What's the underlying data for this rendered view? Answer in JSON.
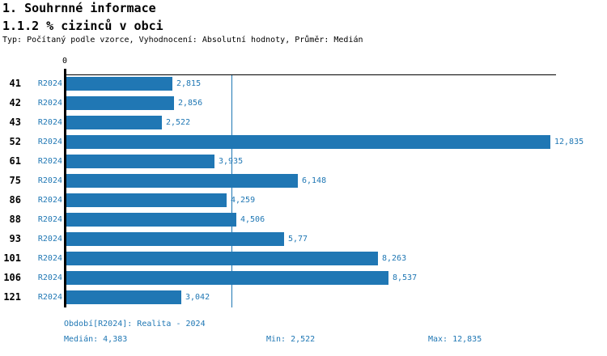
{
  "header": {
    "section_title": "1. Souhrnné informace",
    "indicator_title": "1.1.2 % cizinců v obci",
    "meta": "Typ: Počítaný podle vzorce, Vyhodnocení: Absolutní hodnoty, Průměr: Medián"
  },
  "chart_data": {
    "type": "bar",
    "orientation": "horizontal",
    "title": "1.1.2 % cizinců v obci",
    "categories": [
      "41",
      "42",
      "43",
      "52",
      "61",
      "75",
      "86",
      "88",
      "93",
      "101",
      "106",
      "121"
    ],
    "series": [
      {
        "name": "R2024",
        "values": [
          2.815,
          2.856,
          2.522,
          12.835,
          3.935,
          6.148,
          4.259,
          4.506,
          5.77,
          8.263,
          8.537,
          3.042
        ],
        "value_labels": [
          "2,815",
          "2,856",
          "2,522",
          "12,835",
          "3,935",
          "6,148",
          "4,259",
          "4,506",
          "5,77",
          "8,263",
          "8,537",
          "3,042"
        ]
      }
    ],
    "series_labels_per_row": [
      "R2024",
      "R2024",
      "R2024",
      "R2024",
      "R2024",
      "R2024",
      "R2024",
      "R2024",
      "R2024",
      "R2024",
      "R2024",
      "R2024"
    ],
    "x_axis": {
      "zero_label": "0",
      "range": [
        0,
        13
      ],
      "ticks_shown": [
        "0"
      ]
    },
    "median_line_value": 4.383,
    "grid": false,
    "legend_position": "none"
  },
  "footer": {
    "period": "Období[R2024]: Realita - 2024",
    "median": "Medián: 4,383",
    "min": "Min: 2,522",
    "max": "Max: 12,835"
  },
  "colors": {
    "bar": "#2077b4",
    "blue_text": "#1f77b4",
    "axis": "#000000",
    "background": "#ffffff"
  }
}
